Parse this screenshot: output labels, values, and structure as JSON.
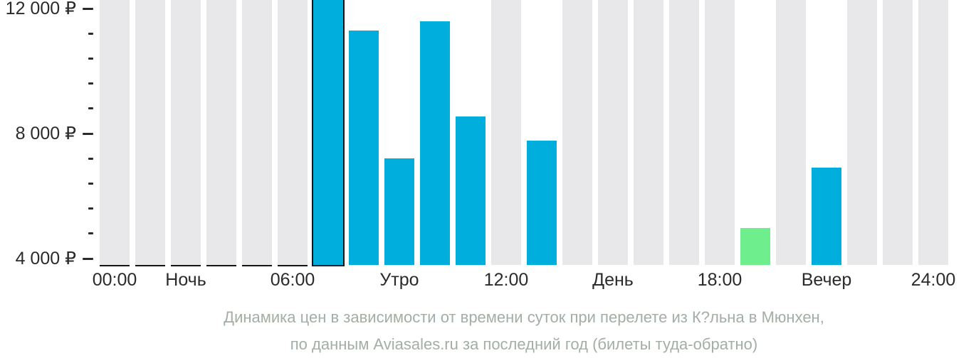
{
  "caption": {
    "line1": "Динамика цен в зависимости от времени суток при перелете из К?льна в Мюнхен,",
    "line2": "по данным Aviasales.ru за последний год (билеты туда-обратно)"
  },
  "chart_data": {
    "type": "bar",
    "title": "Динамика цен в зависимости от времени суток при перелете из К?льна в Мюнхен, по данным Aviasales.ru за последний год (билеты туда-обратно)",
    "currency": "₽",
    "y_axis": {
      "tick_interval": 800,
      "major_tick_interval": 4000,
      "ylim_at_baseline": 3795,
      "ylim_at_top": 12276,
      "major_ticks": [
        {
          "value": 12000,
          "label": "12 000 ₽"
        },
        {
          "value": 8000,
          "label": "8 000 ₽"
        },
        {
          "value": 4000,
          "label": "4 000 ₽"
        }
      ]
    },
    "x_axis": {
      "labels": [
        {
          "text": "00:00",
          "bar_index": 0
        },
        {
          "text": "Ночь",
          "bar_index": 2
        },
        {
          "text": "06:00",
          "bar_index": 5
        },
        {
          "text": "Утро",
          "bar_index": 8
        },
        {
          "text": "12:00",
          "bar_index": 11
        },
        {
          "text": "День",
          "bar_index": 14
        },
        {
          "text": "18:00",
          "bar_index": 17
        },
        {
          "text": "Вечер",
          "bar_index": 20
        },
        {
          "text": "24:00",
          "bar_index": 23
        }
      ]
    },
    "bars": [
      {
        "hour": "00:00",
        "value": null,
        "style": "no-data",
        "bottom_edge": true
      },
      {
        "hour": "01:00",
        "value": null,
        "style": "no-data",
        "bottom_edge": true
      },
      {
        "hour": "02:00",
        "value": null,
        "style": "no-data",
        "bottom_edge": true
      },
      {
        "hour": "03:00",
        "value": null,
        "style": "no-data",
        "bottom_edge": true
      },
      {
        "hour": "04:00",
        "value": null,
        "style": "no-data",
        "bottom_edge": true
      },
      {
        "hour": "05:00",
        "value": null,
        "style": "no-data",
        "bottom_edge": true
      },
      {
        "hour": "06:00",
        "value": 12400,
        "style": "price",
        "highlighted": true,
        "clipped_at_top": true
      },
      {
        "hour": "07:00",
        "value": 11300,
        "style": "price"
      },
      {
        "hour": "08:00",
        "value": 7200,
        "style": "price"
      },
      {
        "hour": "09:00",
        "value": 11600,
        "style": "price"
      },
      {
        "hour": "10:00",
        "value": 8550,
        "style": "price"
      },
      {
        "hour": "11:00",
        "value": null,
        "style": "no-data"
      },
      {
        "hour": "12:00",
        "value": 7770,
        "style": "price"
      },
      {
        "hour": "13:00",
        "value": null,
        "style": "no-data"
      },
      {
        "hour": "14:00",
        "value": null,
        "style": "no-data"
      },
      {
        "hour": "15:00",
        "value": null,
        "style": "no-data"
      },
      {
        "hour": "16:00",
        "value": null,
        "style": "no-data"
      },
      {
        "hour": "17:00",
        "value": null,
        "style": "no-data"
      },
      {
        "hour": "18:00",
        "value": 4980,
        "style": "min-price"
      },
      {
        "hour": "19:00",
        "value": null,
        "style": "no-data"
      },
      {
        "hour": "20:00",
        "value": 6910,
        "style": "price"
      },
      {
        "hour": "21:00",
        "value": null,
        "style": "no-data"
      },
      {
        "hour": "22:00",
        "value": null,
        "style": "no-data"
      },
      {
        "hour": "23:00",
        "value": null,
        "style": "no-data"
      }
    ],
    "colors": {
      "price_bar": "#00aedd",
      "min_price_bar": "#6fee8d",
      "no_data_bar": "#e8e8ea",
      "axis_text": "#2b2b2b",
      "tick_mark": "#2b2b2b",
      "caption_text": "#a3aea4",
      "highlight_border": "#151515",
      "background": "#ffffff"
    }
  }
}
